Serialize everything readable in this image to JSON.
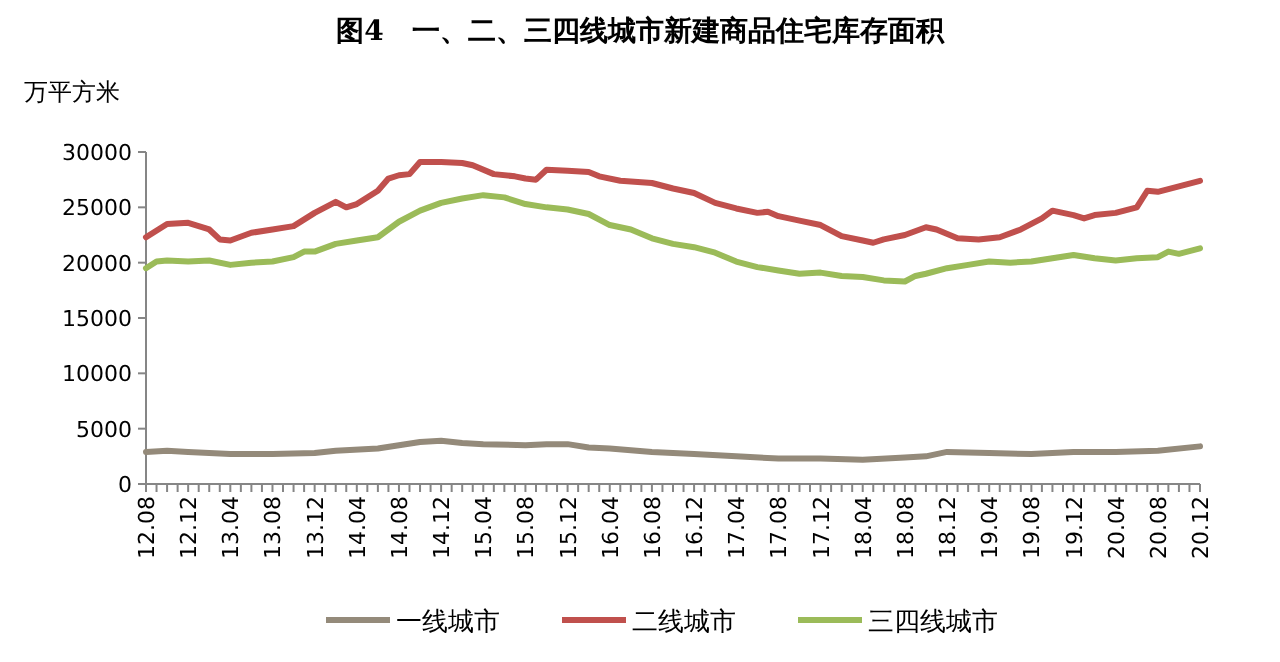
{
  "chart_data": {
    "type": "line",
    "title": "图4　一、二、三四线城市新建商品住宅库存面积",
    "ylabel": "万平方米",
    "ylim": [
      0,
      30000
    ],
    "yticks": [
      0,
      5000,
      10000,
      15000,
      20000,
      25000,
      30000
    ],
    "xlim": [
      "2012-08",
      "2020-12"
    ],
    "xticks": [
      {
        "value": "2012-08",
        "label": "12.08"
      },
      {
        "value": "2012-09",
        "label": null
      },
      {
        "value": "2012-10",
        "label": null
      },
      {
        "value": "2012-11",
        "label": null
      },
      {
        "value": "2012-12",
        "label": "12.12"
      },
      {
        "value": "2013-01",
        "label": null
      },
      {
        "value": "2013-02",
        "label": null
      },
      {
        "value": "2013-03",
        "label": null
      },
      {
        "value": "2013-04",
        "label": "13.04"
      },
      {
        "value": "2013-05",
        "label": null
      },
      {
        "value": "2013-06",
        "label": null
      },
      {
        "value": "2013-07",
        "label": null
      },
      {
        "value": "2013-08",
        "label": "13.08"
      },
      {
        "value": "2013-09",
        "label": null
      },
      {
        "value": "2013-10",
        "label": null
      },
      {
        "value": "2013-11",
        "label": null
      },
      {
        "value": "2013-12",
        "label": "13.12"
      },
      {
        "value": "2014-01",
        "label": null
      },
      {
        "value": "2014-02",
        "label": null
      },
      {
        "value": "2014-03",
        "label": null
      },
      {
        "value": "2014-04",
        "label": "14.04"
      },
      {
        "value": "2014-05",
        "label": null
      },
      {
        "value": "2014-06",
        "label": null
      },
      {
        "value": "2014-07",
        "label": null
      },
      {
        "value": "2014-08",
        "label": "14.08"
      },
      {
        "value": "2014-09",
        "label": null
      },
      {
        "value": "2014-10",
        "label": null
      },
      {
        "value": "2014-11",
        "label": null
      },
      {
        "value": "2014-12",
        "label": "14.12"
      },
      {
        "value": "2015-01",
        "label": null
      },
      {
        "value": "2015-02",
        "label": null
      },
      {
        "value": "2015-03",
        "label": null
      },
      {
        "value": "2015-04",
        "label": "15.04"
      },
      {
        "value": "2015-05",
        "label": null
      },
      {
        "value": "2015-06",
        "label": null
      },
      {
        "value": "2015-07",
        "label": null
      },
      {
        "value": "2015-08",
        "label": "15.08"
      },
      {
        "value": "2015-09",
        "label": null
      },
      {
        "value": "2015-10",
        "label": null
      },
      {
        "value": "2015-11",
        "label": null
      },
      {
        "value": "2015-12",
        "label": "15.12"
      },
      {
        "value": "2016-01",
        "label": null
      },
      {
        "value": "2016-02",
        "label": null
      },
      {
        "value": "2016-03",
        "label": null
      },
      {
        "value": "2016-04",
        "label": "16.04"
      },
      {
        "value": "2016-05",
        "label": null
      },
      {
        "value": "2016-06",
        "label": null
      },
      {
        "value": "2016-07",
        "label": null
      },
      {
        "value": "2016-08",
        "label": "16.08"
      },
      {
        "value": "2016-09",
        "label": null
      },
      {
        "value": "2016-10",
        "label": null
      },
      {
        "value": "2016-11",
        "label": null
      },
      {
        "value": "2016-12",
        "label": "16.12"
      },
      {
        "value": "2017-01",
        "label": null
      },
      {
        "value": "2017-02",
        "label": null
      },
      {
        "value": "2017-03",
        "label": null
      },
      {
        "value": "2017-04",
        "label": "17.04"
      },
      {
        "value": "2017-05",
        "label": null
      },
      {
        "value": "2017-06",
        "label": null
      },
      {
        "value": "2017-07",
        "label": null
      },
      {
        "value": "2017-08",
        "label": "17.08"
      },
      {
        "value": "2017-09",
        "label": null
      },
      {
        "value": "2017-10",
        "label": null
      },
      {
        "value": "2017-11",
        "label": null
      },
      {
        "value": "2017-12",
        "label": "17.12"
      },
      {
        "value": "2018-01",
        "label": null
      },
      {
        "value": "2018-02",
        "label": null
      },
      {
        "value": "2018-03",
        "label": null
      },
      {
        "value": "2018-04",
        "label": "18.04"
      },
      {
        "value": "2018-05",
        "label": null
      },
      {
        "value": "2018-06",
        "label": null
      },
      {
        "value": "2018-07",
        "label": null
      },
      {
        "value": "2018-08",
        "label": "18.08"
      },
      {
        "value": "2018-09",
        "label": null
      },
      {
        "value": "2018-10",
        "label": null
      },
      {
        "value": "2018-11",
        "label": null
      },
      {
        "value": "2018-12",
        "label": "18.12"
      },
      {
        "value": "2019-01",
        "label": null
      },
      {
        "value": "2019-02",
        "label": null
      },
      {
        "value": "2019-03",
        "label": null
      },
      {
        "value": "2019-04",
        "label": "19.04"
      },
      {
        "value": "2019-05",
        "label": null
      },
      {
        "value": "2019-06",
        "label": null
      },
      {
        "value": "2019-07",
        "label": null
      },
      {
        "value": "2019-08",
        "label": "19.08"
      },
      {
        "value": "2019-09",
        "label": null
      },
      {
        "value": "2019-10",
        "label": null
      },
      {
        "value": "2019-11",
        "label": null
      },
      {
        "value": "2019-12",
        "label": "19.12"
      },
      {
        "value": "2020-01",
        "label": null
      },
      {
        "value": "2020-02",
        "label": null
      },
      {
        "value": "2020-03",
        "label": null
      },
      {
        "value": "2020-04",
        "label": "20.04"
      },
      {
        "value": "2020-05",
        "label": null
      },
      {
        "value": "2020-06",
        "label": null
      },
      {
        "value": "2020-07",
        "label": null
      },
      {
        "value": "2020-08",
        "label": "20.08"
      },
      {
        "value": "2020-09",
        "label": null
      },
      {
        "value": "2020-10",
        "label": null
      },
      {
        "value": "2020-11",
        "label": null
      },
      {
        "value": "2020-12",
        "label": "20.12"
      }
    ],
    "grid": false,
    "legend": "bottom",
    "marker": "none",
    "line_style": "solid",
    "series": [
      {
        "name": "一线城市",
        "color": "#948a7a",
        "x": [
          "2012-08",
          "2012-10",
          "2012-12",
          "2013-02",
          "2013-04",
          "2013-08",
          "2013-12",
          "2014-02",
          "2014-06",
          "2014-08",
          "2014-10",
          "2014-12",
          "2015-02",
          "2015-04",
          "2015-08",
          "2015-10",
          "2015-12",
          "2016-02",
          "2016-04",
          "2016-08",
          "2016-12",
          "2017-04",
          "2017-08",
          "2017-12",
          "2018-04",
          "2018-08",
          "2018-10",
          "2018-12",
          "2019-04",
          "2019-08",
          "2019-12",
          "2020-04",
          "2020-08",
          "2020-12"
        ],
        "values": [
          2900,
          3000,
          2900,
          2800,
          2700,
          2700,
          2800,
          3000,
          3200,
          3500,
          3800,
          3900,
          3700,
          3600,
          3500,
          3600,
          3600,
          3300,
          3200,
          2900,
          2700,
          2500,
          2300,
          2300,
          2200,
          2400,
          2500,
          2900,
          2800,
          2700,
          2900,
          2900,
          3000,
          3400
        ]
      },
      {
        "name": "二线城市",
        "color": "#c0504d",
        "x": [
          "2012-08",
          "2012-10",
          "2012-12",
          "2013-02",
          "2013-03",
          "2013-04",
          "2013-06",
          "2013-08",
          "2013-10",
          "2013-12",
          "2014-02",
          "2014-03",
          "2014-04",
          "2014-06",
          "2014-07",
          "2014-08",
          "2014-09",
          "2014-10",
          "2014-12",
          "2015-02",
          "2015-03",
          "2015-05",
          "2015-07",
          "2015-08",
          "2015-09",
          "2015-10",
          "2015-12",
          "2016-02",
          "2016-03",
          "2016-05",
          "2016-08",
          "2016-10",
          "2016-12",
          "2017-02",
          "2017-04",
          "2017-06",
          "2017-07",
          "2017-08",
          "2017-10",
          "2017-12",
          "2018-02",
          "2018-04",
          "2018-05",
          "2018-06",
          "2018-08",
          "2018-10",
          "2018-11",
          "2019-01",
          "2019-03",
          "2019-05",
          "2019-07",
          "2019-08",
          "2019-09",
          "2019-10",
          "2019-12",
          "2020-01",
          "2020-02",
          "2020-04",
          "2020-06",
          "2020-07",
          "2020-08",
          "2020-10",
          "2020-12"
        ],
        "values": [
          22300,
          23500,
          23600,
          23000,
          22100,
          22000,
          22700,
          23000,
          23300,
          24500,
          25500,
          25000,
          25300,
          26500,
          27600,
          27900,
          28000,
          29100,
          29100,
          29000,
          28800,
          28000,
          27800,
          27600,
          27500,
          28400,
          28300,
          28200,
          27800,
          27400,
          27200,
          26700,
          26300,
          25400,
          24900,
          24500,
          24600,
          24200,
          23800,
          23400,
          22400,
          22000,
          21800,
          22100,
          22500,
          23200,
          23000,
          22200,
          22100,
          22300,
          23000,
          23500,
          24000,
          24700,
          24300,
          24000,
          24300,
          24500,
          25000,
          26500,
          26400,
          26900,
          27400
        ]
      },
      {
        "name": "三四线城市",
        "color": "#9bbb59",
        "x": [
          "2012-08",
          "2012-09",
          "2012-10",
          "2012-12",
          "2013-02",
          "2013-04",
          "2013-06",
          "2013-08",
          "2013-10",
          "2013-11",
          "2013-12",
          "2014-02",
          "2014-04",
          "2014-06",
          "2014-08",
          "2014-10",
          "2014-12",
          "2015-02",
          "2015-04",
          "2015-06",
          "2015-08",
          "2015-10",
          "2015-12",
          "2016-02",
          "2016-04",
          "2016-06",
          "2016-08",
          "2016-10",
          "2016-12",
          "2017-02",
          "2017-04",
          "2017-06",
          "2017-08",
          "2017-10",
          "2017-12",
          "2018-02",
          "2018-04",
          "2018-06",
          "2018-08",
          "2018-09",
          "2018-10",
          "2018-12",
          "2019-02",
          "2019-04",
          "2019-06",
          "2019-08",
          "2019-10",
          "2019-12",
          "2020-02",
          "2020-04",
          "2020-06",
          "2020-08",
          "2020-09",
          "2020-10",
          "2020-12"
        ],
        "values": [
          19500,
          20100,
          20200,
          20100,
          20200,
          19800,
          20000,
          20100,
          20500,
          21000,
          21000,
          21700,
          22000,
          22300,
          23700,
          24700,
          25400,
          25800,
          26100,
          25900,
          25300,
          25000,
          24800,
          24400,
          23400,
          23000,
          22200,
          21700,
          21400,
          20900,
          20100,
          19600,
          19300,
          19000,
          19100,
          18800,
          18700,
          18400,
          18300,
          18800,
          19000,
          19500,
          19800,
          20100,
          20000,
          20100,
          20400,
          20700,
          20400,
          20200,
          20400,
          20500,
          21000,
          20800,
          21300
        ]
      }
    ]
  }
}
